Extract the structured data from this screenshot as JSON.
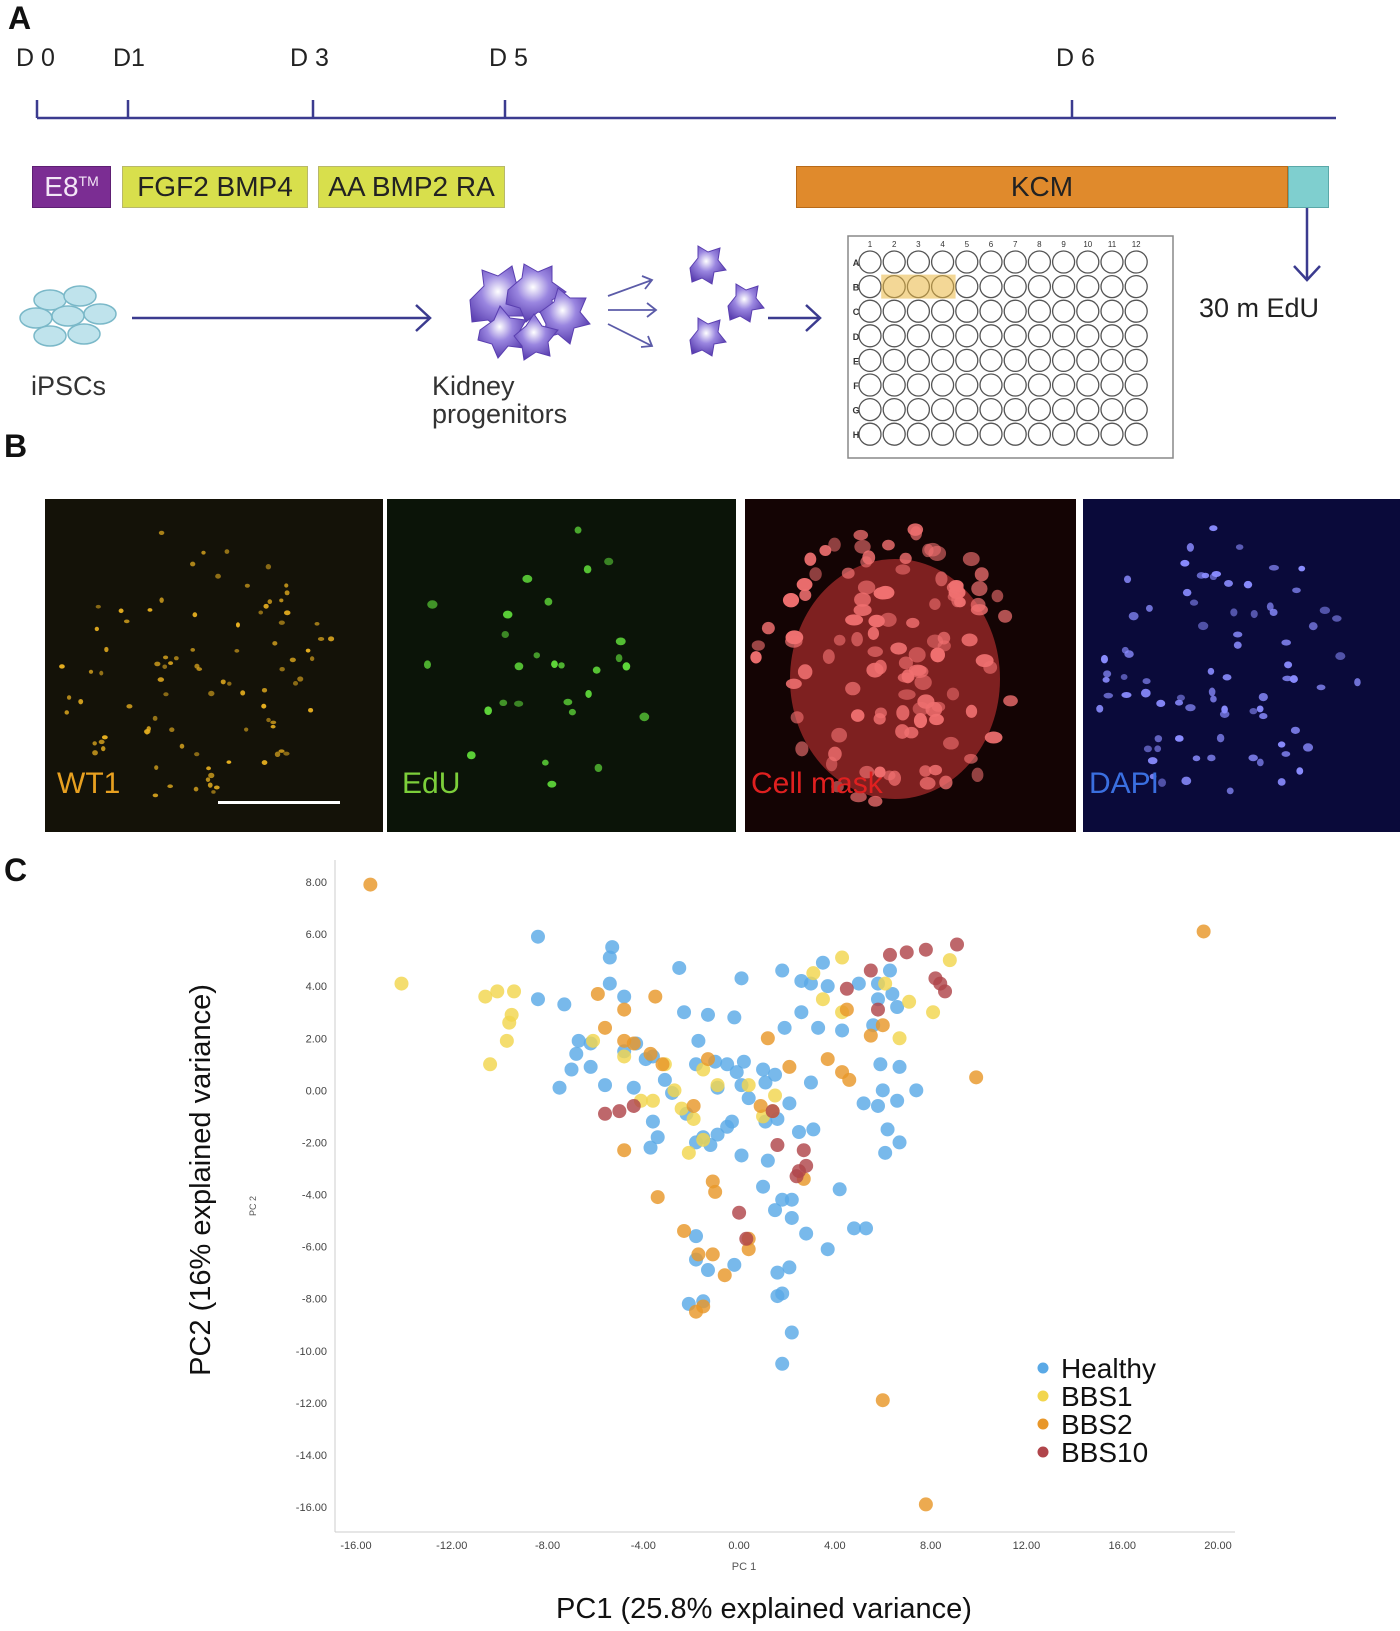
{
  "panels": {
    "a": {
      "letter": "A",
      "days": [
        "D 0",
        "D1",
        "D 3",
        "D 5",
        "D 6"
      ],
      "media": {
        "e8": "E8",
        "e8_sup": "TM",
        "stage1": "FGF2 BMP4",
        "stage2": "AA BMP2 RA",
        "kcm": "KCM"
      },
      "colors": {
        "e8": "#7b2d93",
        "stage": "#d8df4c",
        "kcm": "#e08a2c",
        "edu_pulse": "#7fcfcf",
        "line": "#3b3b8f"
      },
      "edu_label": "30 m EdU",
      "ipsc_label": "iPSCs",
      "progenitor_label_1": "Kidney",
      "progenitor_label_2": "progenitors",
      "plate": {
        "columns": [
          "1",
          "2",
          "3",
          "4",
          "5",
          "6",
          "7",
          "8",
          "9",
          "10",
          "11",
          "12"
        ],
        "rows": [
          "A",
          "B",
          "C",
          "D",
          "E",
          "F",
          "G",
          "H"
        ],
        "highlighted_wells": [
          "B2",
          "B3",
          "B4"
        ]
      }
    },
    "b": {
      "letter": "B",
      "channels": [
        {
          "label": "WT1",
          "color": "#e8a020"
        },
        {
          "label": "EdU",
          "color": "#7ccf3a"
        },
        {
          "label": "Cell mask",
          "color": "#e02020"
        },
        {
          "label": "DAPI",
          "color": "#3a6fe0"
        }
      ]
    },
    "c": {
      "letter": "C"
    }
  },
  "chart_data": {
    "type": "scatter",
    "xlabel": "PC1 (25.8% explained variance)",
    "xlabel_small": "PC 1",
    "ylabel": "PC2 (16% explained variance)",
    "ylabel_small": "PC 2",
    "xlim": [
      -16,
      20
    ],
    "ylim": [
      -16,
      8
    ],
    "xticks": [
      "-16.00",
      "-12.00",
      "-8.00",
      "-4.00",
      "0.00",
      "4.00",
      "8.00",
      "12.00",
      "16.00",
      "20.00"
    ],
    "yticks": [
      "8.00",
      "6.00",
      "4.00",
      "2.00",
      "0.00",
      "-2.00",
      "-4.00",
      "-6.00",
      "-8.00",
      "-10.00",
      "-12.00",
      "-14.00",
      "-16.00"
    ],
    "grid": false,
    "legend_position": "bottom-right",
    "series": [
      {
        "name": "Healthy",
        "color": "#5aa9e6",
        "points": [
          [
            -8.4,
            5.9
          ],
          [
            -5.3,
            5.5
          ],
          [
            -5.4,
            5.1
          ],
          [
            -2.5,
            4.7
          ],
          [
            0.1,
            4.3
          ],
          [
            1.8,
            4.6
          ],
          [
            3.5,
            4.9
          ],
          [
            2.6,
            4.2
          ],
          [
            3.0,
            4.1
          ],
          [
            3.7,
            4.0
          ],
          [
            5.0,
            4.1
          ],
          [
            6.3,
            4.6
          ],
          [
            5.8,
            4.1
          ],
          [
            5.8,
            3.5
          ],
          [
            6.4,
            3.7
          ],
          [
            -8.4,
            3.5
          ],
          [
            -7.3,
            3.3
          ],
          [
            -5.4,
            4.1
          ],
          [
            -4.8,
            3.6
          ],
          [
            -2.3,
            3.0
          ],
          [
            -1.3,
            2.9
          ],
          [
            -0.2,
            2.8
          ],
          [
            2.6,
            3.0
          ],
          [
            1.9,
            2.4
          ],
          [
            3.3,
            2.4
          ],
          [
            4.3,
            2.3
          ],
          [
            5.6,
            2.5
          ],
          [
            6.6,
            3.2
          ],
          [
            -6.7,
            1.9
          ],
          [
            -6.2,
            1.8
          ],
          [
            -6.8,
            1.4
          ],
          [
            -7.0,
            0.8
          ],
          [
            -6.2,
            0.9
          ],
          [
            -7.5,
            0.1
          ],
          [
            -4.8,
            1.5
          ],
          [
            -4.3,
            1.8
          ],
          [
            -3.9,
            1.2
          ],
          [
            -1.7,
            1.9
          ],
          [
            -3.1,
            0.4
          ],
          [
            -4.4,
            0.1
          ],
          [
            -5.6,
            0.2
          ],
          [
            -1.8,
            1.0
          ],
          [
            -1.0,
            1.1
          ],
          [
            -0.5,
            1.0
          ],
          [
            0.2,
            1.1
          ],
          [
            -0.1,
            0.7
          ],
          [
            1.0,
            0.8
          ],
          [
            1.5,
            0.6
          ],
          [
            1.1,
            0.3
          ],
          [
            0.1,
            0.2
          ],
          [
            -0.9,
            0.1
          ],
          [
            0.4,
            -0.3
          ],
          [
            2.1,
            -0.5
          ],
          [
            3.0,
            0.3
          ],
          [
            5.9,
            1.0
          ],
          [
            6.7,
            0.9
          ],
          [
            6.0,
            0.0
          ],
          [
            7.4,
            0.0
          ],
          [
            6.6,
            -0.4
          ],
          [
            5.8,
            -0.6
          ],
          [
            5.2,
            -0.5
          ],
          [
            6.2,
            -1.5
          ],
          [
            6.1,
            -2.4
          ],
          [
            6.7,
            -2.0
          ],
          [
            -3.6,
            -1.2
          ],
          [
            -3.4,
            -1.8
          ],
          [
            -3.7,
            -2.2
          ],
          [
            -2.2,
            -0.9
          ],
          [
            -1.8,
            -2.0
          ],
          [
            -1.5,
            -1.8
          ],
          [
            -0.9,
            -1.7
          ],
          [
            -1.2,
            -2.1
          ],
          [
            -0.5,
            -1.4
          ],
          [
            -0.3,
            -1.2
          ],
          [
            0.1,
            -2.5
          ],
          [
            1.1,
            -1.2
          ],
          [
            1.6,
            -1.1
          ],
          [
            2.5,
            -1.6
          ],
          [
            3.1,
            -1.5
          ],
          [
            1.2,
            -2.7
          ],
          [
            1.0,
            -3.7
          ],
          [
            1.8,
            -4.2
          ],
          [
            1.5,
            -4.6
          ],
          [
            2.2,
            -4.2
          ],
          [
            2.2,
            -4.9
          ],
          [
            2.8,
            -5.5
          ],
          [
            4.2,
            -3.8
          ],
          [
            3.7,
            -6.1
          ],
          [
            4.8,
            -5.3
          ],
          [
            5.3,
            -5.3
          ],
          [
            -1.8,
            -5.6
          ],
          [
            -1.8,
            -6.5
          ],
          [
            -2.1,
            -8.2
          ],
          [
            -1.5,
            -8.1
          ],
          [
            -0.2,
            -6.7
          ],
          [
            -1.3,
            -6.9
          ],
          [
            2.1,
            -6.8
          ],
          [
            1.6,
            -7.0
          ],
          [
            1.6,
            -7.9
          ],
          [
            1.8,
            -7.8
          ],
          [
            2.2,
            -9.3
          ],
          [
            1.8,
            -10.5
          ],
          [
            -3.6,
            1.3
          ],
          [
            -2.8,
            -0.1
          ]
        ]
      },
      {
        "name": "BBS1",
        "color": "#f2d64e",
        "points": [
          [
            -14.1,
            4.1
          ],
          [
            -10.6,
            3.6
          ],
          [
            -10.1,
            3.8
          ],
          [
            -9.4,
            3.8
          ],
          [
            -9.5,
            2.9
          ],
          [
            -9.6,
            2.6
          ],
          [
            -9.7,
            1.9
          ],
          [
            -10.4,
            1.0
          ],
          [
            -6.1,
            1.9
          ],
          [
            -4.8,
            1.3
          ],
          [
            -3.1,
            1.0
          ],
          [
            -1.5,
            0.8
          ],
          [
            -0.9,
            0.2
          ],
          [
            0.4,
            0.2
          ],
          [
            1.5,
            -0.2
          ],
          [
            1.0,
            -1.0
          ],
          [
            -2.4,
            -0.7
          ],
          [
            -1.9,
            -1.1
          ],
          [
            -2.7,
            0.0
          ],
          [
            -3.6,
            -0.4
          ],
          [
            -2.1,
            -2.4
          ],
          [
            3.1,
            4.5
          ],
          [
            4.3,
            5.1
          ],
          [
            6.1,
            4.1
          ],
          [
            8.8,
            5.0
          ],
          [
            4.3,
            3.0
          ],
          [
            7.1,
            3.4
          ],
          [
            8.1,
            3.0
          ],
          [
            6.7,
            2.0
          ],
          [
            3.5,
            3.5
          ],
          [
            -1.5,
            -1.9
          ],
          [
            1.4,
            -0.8
          ],
          [
            -4.1,
            -0.4
          ]
        ]
      },
      {
        "name": "BBS2",
        "color": "#e8972a",
        "points": [
          [
            -15.4,
            7.9
          ],
          [
            -5.9,
            3.7
          ],
          [
            -4.8,
            3.1
          ],
          [
            -3.5,
            3.6
          ],
          [
            -5.6,
            2.4
          ],
          [
            -4.8,
            1.9
          ],
          [
            -4.4,
            1.8
          ],
          [
            -3.7,
            1.4
          ],
          [
            -3.2,
            1.0
          ],
          [
            -1.3,
            1.2
          ],
          [
            -4.8,
            -2.3
          ],
          [
            -3.4,
            -4.1
          ],
          [
            -1.1,
            -3.5
          ],
          [
            -1.0,
            -3.9
          ],
          [
            -2.3,
            -5.4
          ],
          [
            -1.7,
            -6.3
          ],
          [
            -1.1,
            -6.3
          ],
          [
            -1.5,
            -8.3
          ],
          [
            -1.8,
            -8.5
          ],
          [
            0.4,
            -6.1
          ],
          [
            0.4,
            -5.7
          ],
          [
            -0.6,
            -7.1
          ],
          [
            2.1,
            0.9
          ],
          [
            1.2,
            2.0
          ],
          [
            3.7,
            1.2
          ],
          [
            4.3,
            0.7
          ],
          [
            4.6,
            0.4
          ],
          [
            5.5,
            2.1
          ],
          [
            6.0,
            2.5
          ],
          [
            4.5,
            3.1
          ],
          [
            0.9,
            -0.6
          ],
          [
            2.7,
            -3.4
          ],
          [
            9.9,
            0.5
          ],
          [
            19.4,
            6.1
          ],
          [
            6.0,
            -11.9
          ],
          [
            7.8,
            -15.9
          ],
          [
            -1.9,
            -0.6
          ]
        ]
      },
      {
        "name": "BBS10",
        "color": "#b0454b",
        "points": [
          [
            -5.6,
            -0.9
          ],
          [
            -5.0,
            -0.8
          ],
          [
            -4.4,
            -0.6
          ],
          [
            1.4,
            -0.8
          ],
          [
            1.6,
            -2.1
          ],
          [
            2.7,
            -2.3
          ],
          [
            2.5,
            -3.1
          ],
          [
            2.8,
            -2.9
          ],
          [
            2.4,
            -3.3
          ],
          [
            0.0,
            -4.7
          ],
          [
            0.3,
            -5.7
          ],
          [
            4.5,
            3.9
          ],
          [
            5.5,
            4.6
          ],
          [
            6.3,
            5.2
          ],
          [
            7.0,
            5.3
          ],
          [
            7.8,
            5.4
          ],
          [
            9.1,
            5.6
          ],
          [
            8.2,
            4.3
          ],
          [
            8.6,
            3.8
          ],
          [
            5.8,
            3.1
          ],
          [
            8.4,
            4.1
          ]
        ]
      }
    ]
  }
}
